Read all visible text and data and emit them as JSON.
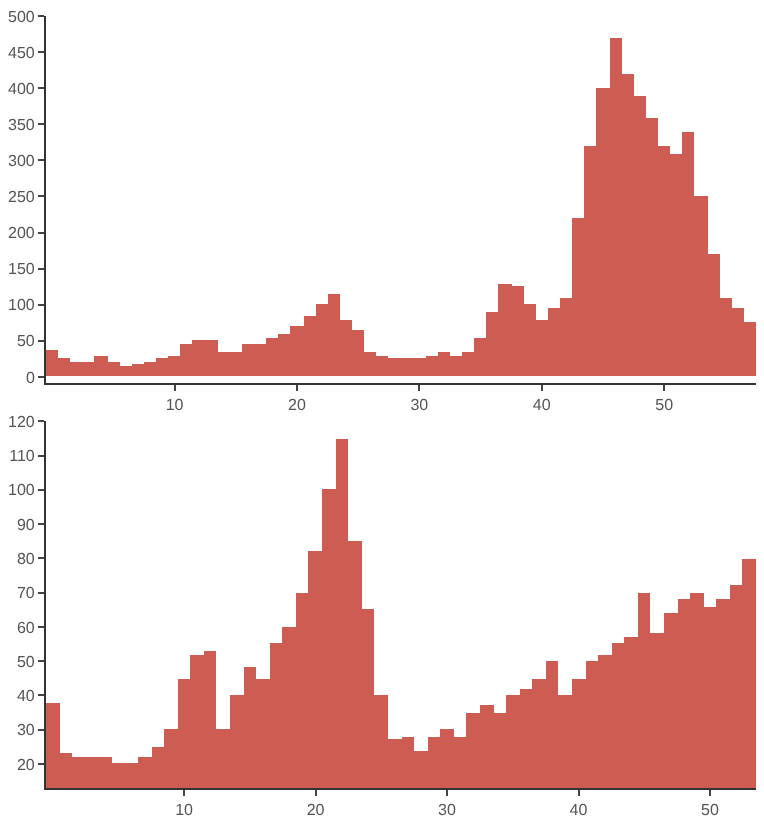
{
  "chart_data": [
    {
      "type": "bar",
      "x": [
        0,
        1,
        2,
        3,
        4,
        5,
        6,
        7,
        8,
        9,
        10,
        11,
        12,
        13,
        14,
        15,
        16,
        17,
        18,
        19,
        20,
        21,
        22,
        23,
        24,
        25,
        26,
        27,
        28,
        29,
        30,
        31,
        32,
        33,
        34,
        35,
        36,
        37,
        38,
        39,
        40,
        41,
        42,
        43,
        44,
        45,
        46,
        47,
        48,
        49,
        50,
        51,
        52,
        53,
        54,
        55,
        56,
        57
      ],
      "series": [
        {
          "color": "#cd5c52",
          "values": [
            38,
            25,
            21,
            21,
            30,
            20,
            15,
            18,
            22,
            25,
            30,
            45,
            52,
            52,
            35,
            35,
            45,
            45,
            55,
            60,
            70,
            85,
            100,
            115,
            80,
            65,
            35,
            30,
            25,
            25,
            27,
            28,
            35,
            30,
            35,
            55,
            90,
            130,
            125,
            100,
            80,
            95,
            110,
            220,
            320,
            400,
            470,
            420,
            390,
            360,
            320,
            310,
            340,
            250,
            170,
            110,
            95,
            75
          ]
        }
      ],
      "xlim": [
        -0.5,
        57.5
      ],
      "ylim": [
        -8,
        500
      ],
      "xticks": [
        10,
        20,
        30,
        40,
        50
      ],
      "yticks": [
        0,
        50,
        100,
        150,
        200,
        250,
        300,
        350,
        400,
        450,
        500
      ]
    },
    {
      "type": "bar",
      "x": [
        0,
        1,
        2,
        3,
        4,
        5,
        6,
        7,
        8,
        9,
        10,
        11,
        12,
        13,
        14,
        15,
        16,
        17,
        18,
        19,
        20,
        21,
        22,
        23,
        24,
        25,
        26,
        27,
        28,
        29,
        30,
        31,
        32,
        33,
        34,
        35,
        36,
        37,
        38,
        39,
        40,
        41,
        42,
        43,
        44,
        45,
        46,
        47,
        48,
        49,
        50,
        51,
        52,
        53
      ],
      "series": [
        {
          "color": "#cd5c52",
          "values": [
            38,
            23,
            22,
            22,
            22,
            20,
            20,
            22,
            25,
            30,
            45,
            52,
            53,
            30,
            40,
            48,
            45,
            55,
            60,
            70,
            82,
            100,
            115,
            85,
            65,
            40,
            27,
            28,
            24,
            28,
            30,
            28,
            35,
            37,
            35,
            40,
            42,
            45,
            50,
            40,
            45,
            50,
            52,
            55,
            57,
            70,
            58,
            64,
            68,
            70,
            66,
            68,
            72,
            80
          ]
        }
      ],
      "xlim": [
        -0.5,
        53.5
      ],
      "ylim": [
        13,
        120
      ],
      "xticks": [
        10,
        20,
        30,
        40,
        50
      ],
      "yticks": [
        20,
        30,
        40,
        50,
        60,
        70,
        80,
        90,
        100,
        110,
        120
      ]
    }
  ]
}
